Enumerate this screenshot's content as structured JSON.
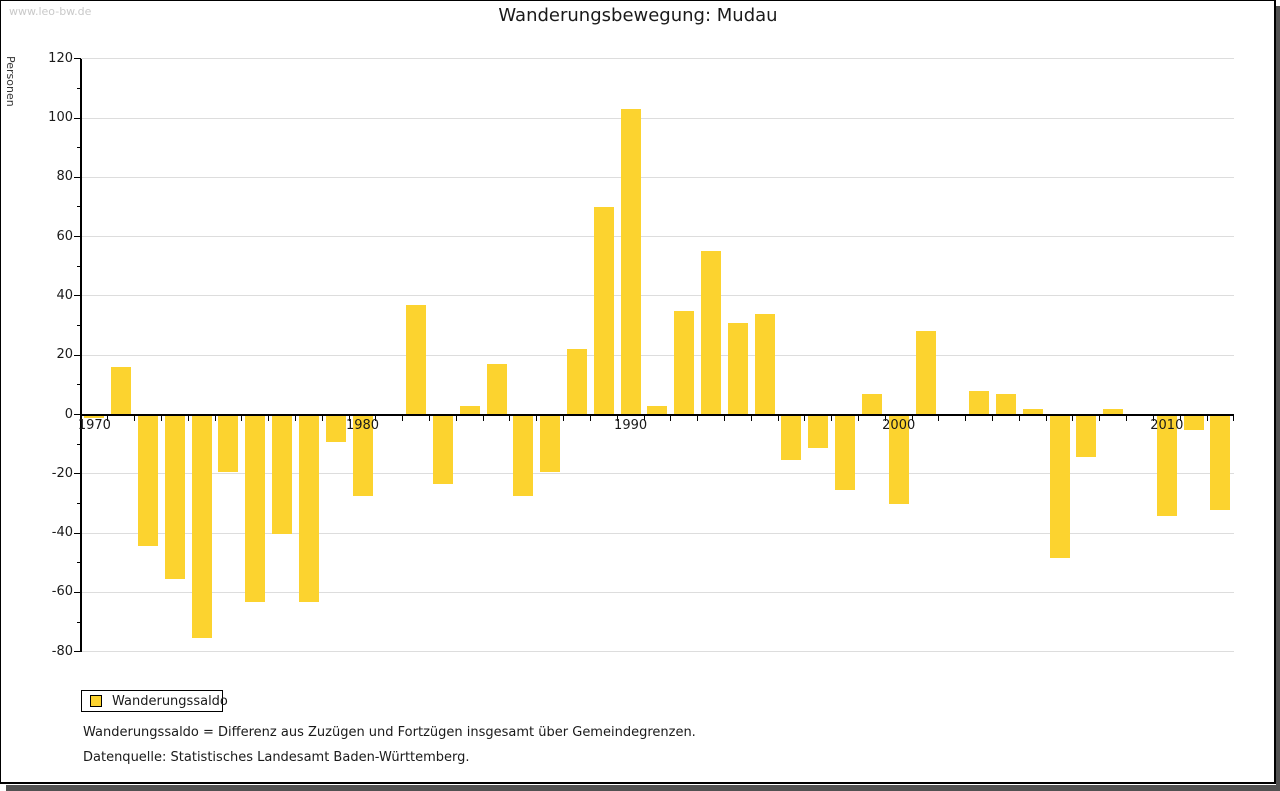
{
  "watermark": "www.leo-bw.de",
  "title": "Wanderungsbewegung: Mudau",
  "y_axis_label": "Personen",
  "legend": {
    "label": "Wanderungssaldo"
  },
  "footnotes": [
    "Wanderungssaldo = Differenz aus Zuzügen und Fortzügen insgesamt über Gemeindegrenzen.",
    "Datenquelle: Statistisches Landesamt Baden-Württemberg."
  ],
  "colors": {
    "bar": "#fcd32f",
    "grid": "#dddddd",
    "axis": "#000000",
    "watermark": "#c9c9c9",
    "shadow": "#515151"
  },
  "chart_data": {
    "type": "bar",
    "title": "Wanderungsbewegung: Mudau",
    "series_name": "Wanderungssaldo",
    "ylabel": "Personen",
    "ylim": [
      -80,
      120
    ],
    "y_tick_step": 20,
    "y_minor_tick_step": 10,
    "grid": true,
    "legend_position": "bottom-left",
    "x_tick_labels": [
      1970,
      1980,
      1990,
      2000,
      2010
    ],
    "x": [
      1970,
      1971,
      1972,
      1973,
      1974,
      1975,
      1976,
      1977,
      1978,
      1979,
      1980,
      1981,
      1982,
      1983,
      1984,
      1985,
      1986,
      1987,
      1988,
      1989,
      1990,
      1991,
      1992,
      1993,
      1994,
      1995,
      1996,
      1997,
      1998,
      1999,
      2000,
      2001,
      2002,
      2003,
      2004,
      2005,
      2006,
      2007,
      2008,
      2009,
      2010,
      2011,
      2012
    ],
    "values": [
      -1,
      16,
      -44,
      -55,
      -75,
      -19,
      -63,
      -40,
      -63,
      -9,
      -27,
      0,
      37,
      -23,
      3,
      17,
      -27,
      -19,
      22,
      70,
      103,
      3,
      35,
      55,
      31,
      34,
      -15,
      -11,
      -25,
      7,
      -30,
      28,
      0,
      8,
      7,
      2,
      -48,
      -14,
      2,
      0,
      -34,
      -5,
      -32
    ]
  }
}
